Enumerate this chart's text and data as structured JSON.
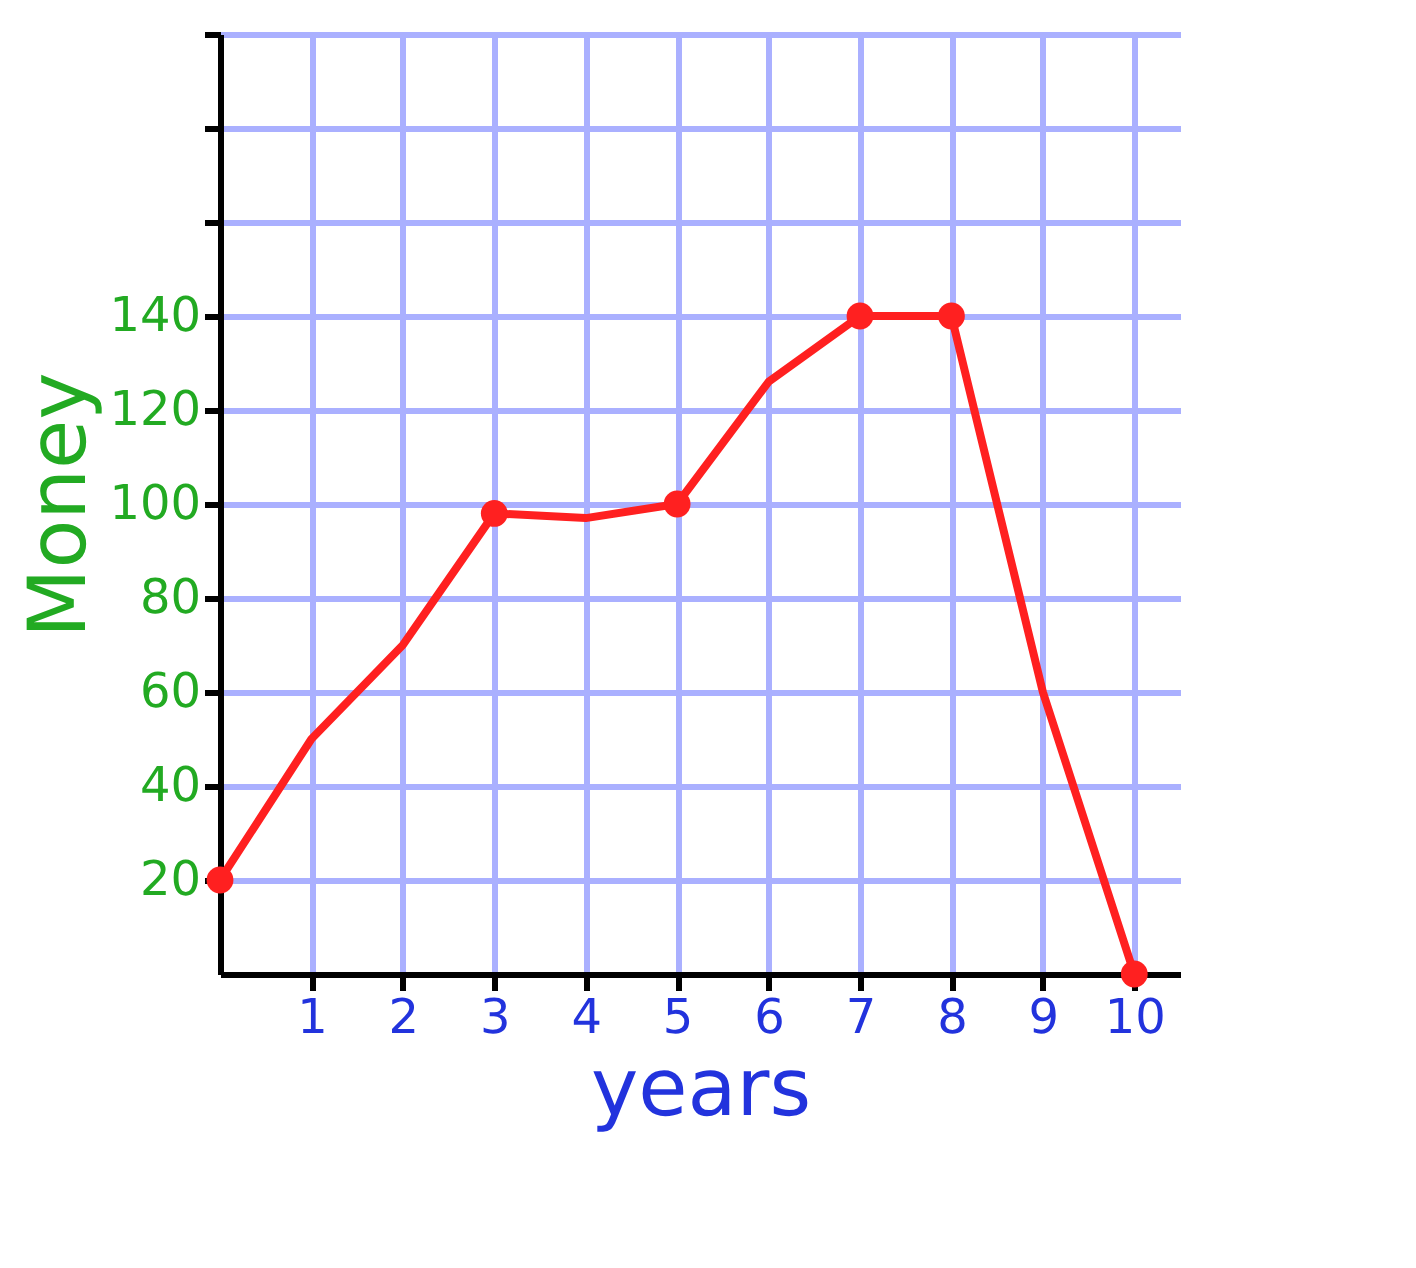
{
  "chart_data": {
    "type": "line",
    "xlabel": "years",
    "ylabel": "Money",
    "x": [
      0,
      1,
      2,
      3,
      4,
      5,
      6,
      7,
      8,
      9,
      10
    ],
    "series": [
      {
        "marker": "none",
        "color": "#ff2020",
        "values": [
          20,
          50,
          70,
          98,
          97,
          100,
          126,
          140,
          140,
          60,
          0
        ]
      },
      {
        "type": "scatter",
        "marker": "circle",
        "color": "#ff2020",
        "x": [
          0,
          3,
          5,
          7,
          8,
          10
        ],
        "values": [
          20,
          98,
          100,
          140,
          140,
          0
        ]
      }
    ],
    "xlim": [
      0,
      10.5
    ],
    "ylim": [
      0,
      200
    ],
    "xticks": [
      1,
      2,
      3,
      4,
      5,
      6,
      7,
      8,
      9,
      10
    ],
    "yticks": [
      20,
      40,
      60,
      80,
      100,
      120,
      140,
      {
        "value": 160,
        "label": null
      },
      {
        "value": 180,
        "label": null
      },
      {
        "value": 200,
        "label": null
      }
    ],
    "grid": true,
    "line_style": "solid"
  }
}
